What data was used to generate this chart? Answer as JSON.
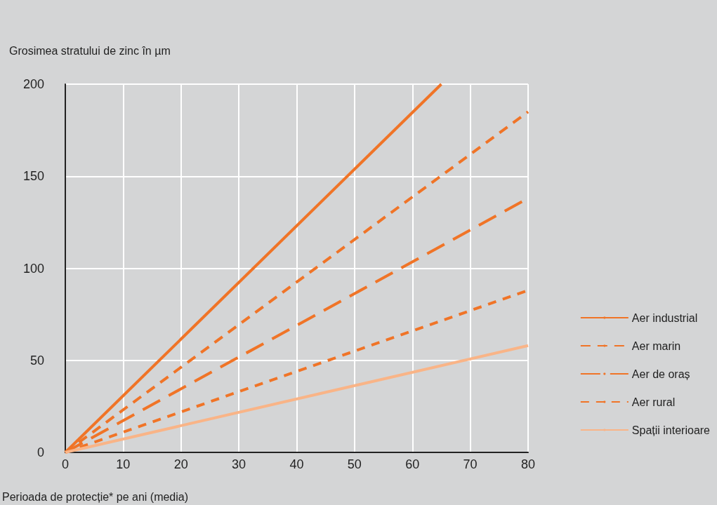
{
  "chart_data": {
    "type": "line",
    "ylabel": "Grosimea stratului de zinc în µm",
    "xlabel": "Perioada de protecție* pe ani (media)",
    "xlim": [
      0,
      80
    ],
    "xticks": [
      0,
      10,
      20,
      30,
      40,
      50,
      60,
      70,
      80
    ],
    "ylim": [
      0,
      200
    ],
    "yticks": [
      0,
      50,
      100,
      150,
      200
    ],
    "grid": true,
    "legend": "right",
    "marker": "none",
    "series": [
      {
        "name": "Aer industrial",
        "color": "#f07427",
        "x": [
          0,
          65
        ],
        "values": [
          0,
          200
        ],
        "line_style": "solid"
      },
      {
        "name": "Aer marin",
        "color": "#f07427",
        "x": [
          0,
          80
        ],
        "values": [
          0,
          185
        ],
        "line_style": "dashed"
      },
      {
        "name": "Aer de oraș",
        "color": "#f07427",
        "x": [
          0,
          80
        ],
        "values": [
          0,
          138
        ],
        "line_style": "dashed"
      },
      {
        "name": "Aer rural",
        "color": "#f07427",
        "x": [
          0,
          80
        ],
        "values": [
          0,
          88
        ],
        "line_style": "dashed"
      },
      {
        "name": "Spații interioare",
        "color": "#f9b487",
        "x": [
          0,
          80
        ],
        "values": [
          0,
          58
        ],
        "line_style": "solid"
      }
    ]
  }
}
